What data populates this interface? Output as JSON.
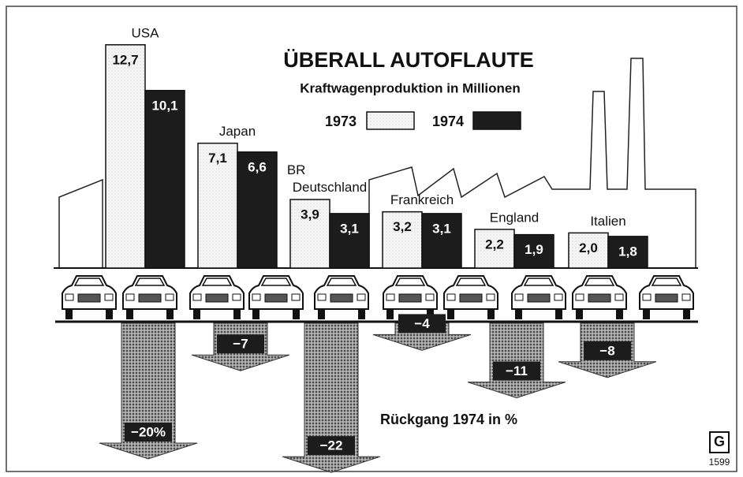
{
  "chart_data": {
    "type": "bar",
    "title": "ÜBERALL AUTOFLAUTE",
    "subtitle": "Kraftwagenproduktion in Millionen",
    "categories": [
      "USA",
      "Japan",
      "BR Deutschland",
      "Frankreich",
      "England",
      "Italien"
    ],
    "series": [
      {
        "name": "1973",
        "color": "#f2f2f2",
        "values": [
          12.7,
          7.1,
          3.9,
          3.2,
          2.2,
          2.0
        ],
        "value_labels": [
          "12,7",
          "7,1",
          "3,9",
          "3,2",
          "2,2",
          "2,0"
        ]
      },
      {
        "name": "1974",
        "color": "#1c1c1c",
        "values": [
          10.1,
          6.6,
          3.1,
          3.1,
          1.9,
          1.8
        ],
        "value_labels": [
          "10,1",
          "6,6",
          "3,1",
          "3,1",
          "1,9",
          "1,8"
        ]
      }
    ],
    "decline": {
      "title": "Rückgang 1974 in %",
      "values": [
        -20,
        -7,
        -22,
        -4,
        -11,
        -8
      ],
      "value_labels": [
        "−20%",
        "−7",
        "−22",
        "−4",
        "−11",
        "−8"
      ]
    }
  },
  "footer": {
    "badge": "1599"
  }
}
